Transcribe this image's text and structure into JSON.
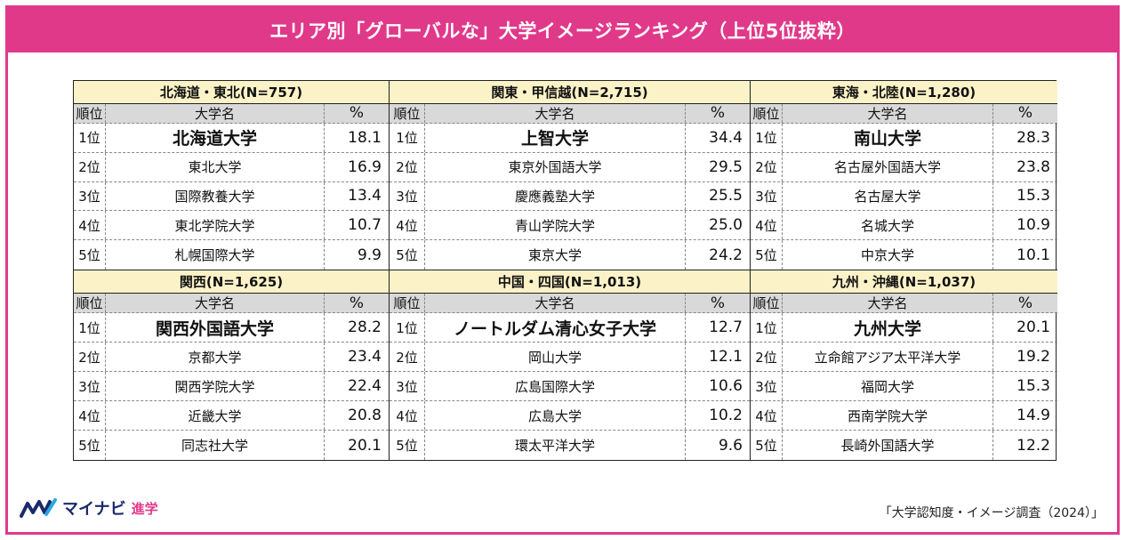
{
  "title": "エリア別「グローバルな」大学イメージランキング（上位5位抜粋）",
  "headers": {
    "rank": "順位",
    "university": "大学名",
    "percent": "%"
  },
  "regions": [
    {
      "name": "北海道・東北(N=757)",
      "rows": [
        {
          "rank": "1位",
          "university": "北海道大学",
          "percent": "18.1"
        },
        {
          "rank": "2位",
          "university": "東北大学",
          "percent": "16.9"
        },
        {
          "rank": "3位",
          "university": "国際教養大学",
          "percent": "13.4"
        },
        {
          "rank": "4位",
          "university": "東北学院大学",
          "percent": "10.7"
        },
        {
          "rank": "5位",
          "university": "札幌国際大学",
          "percent": "9.9"
        }
      ]
    },
    {
      "name": "関東・甲信越(N=2,715)",
      "rows": [
        {
          "rank": "1位",
          "university": "上智大学",
          "percent": "34.4"
        },
        {
          "rank": "2位",
          "university": "東京外国語大学",
          "percent": "29.5"
        },
        {
          "rank": "3位",
          "university": "慶應義塾大学",
          "percent": "25.5"
        },
        {
          "rank": "4位",
          "university": "青山学院大学",
          "percent": "25.0"
        },
        {
          "rank": "5位",
          "university": "東京大学",
          "percent": "24.2"
        }
      ]
    },
    {
      "name": "東海・北陸(N=1,280)",
      "rows": [
        {
          "rank": "1位",
          "university": "南山大学",
          "percent": "28.3"
        },
        {
          "rank": "2位",
          "university": "名古屋外国語大学",
          "percent": "23.8"
        },
        {
          "rank": "3位",
          "university": "名古屋大学",
          "percent": "15.3"
        },
        {
          "rank": "4位",
          "university": "名城大学",
          "percent": "10.9"
        },
        {
          "rank": "5位",
          "university": "中京大学",
          "percent": "10.1"
        }
      ]
    },
    {
      "name": "関西(N=1,625)",
      "rows": [
        {
          "rank": "1位",
          "university": "関西外国語大学",
          "percent": "28.2"
        },
        {
          "rank": "2位",
          "university": "京都大学",
          "percent": "23.4"
        },
        {
          "rank": "3位",
          "university": "関西学院大学",
          "percent": "22.4"
        },
        {
          "rank": "4位",
          "university": "近畿大学",
          "percent": "20.8"
        },
        {
          "rank": "5位",
          "university": "同志社大学",
          "percent": "20.1"
        }
      ]
    },
    {
      "name": "中国・四国(N=1,013)",
      "rows": [
        {
          "rank": "1位",
          "university": "ノートルダム清心女子大学",
          "percent": "12.7"
        },
        {
          "rank": "2位",
          "university": "岡山大学",
          "percent": "12.1"
        },
        {
          "rank": "3位",
          "university": "広島国際大学",
          "percent": "10.6"
        },
        {
          "rank": "4位",
          "university": "広島大学",
          "percent": "10.2"
        },
        {
          "rank": "5位",
          "university": "環太平洋大学",
          "percent": "9.6"
        }
      ]
    },
    {
      "name": "九州・沖縄(N=1,037)",
      "rows": [
        {
          "rank": "1位",
          "university": "九州大学",
          "percent": "20.1"
        },
        {
          "rank": "2位",
          "university": "立命館アジア太平洋大学",
          "percent": "19.2"
        },
        {
          "rank": "3位",
          "university": "福岡大学",
          "percent": "15.3"
        },
        {
          "rank": "4位",
          "university": "西南学院大学",
          "percent": "14.9"
        },
        {
          "rank": "5位",
          "university": "長崎外国語大学",
          "percent": "12.2"
        }
      ]
    }
  ],
  "logo": {
    "name": "マイナビ",
    "sub": "進学",
    "icon": "mynavi-logo-icon",
    "brand_color": "#1a2a6c",
    "accent_color": "#e0398a"
  },
  "source": "「大学認知度・イメージ調査（2024）」"
}
